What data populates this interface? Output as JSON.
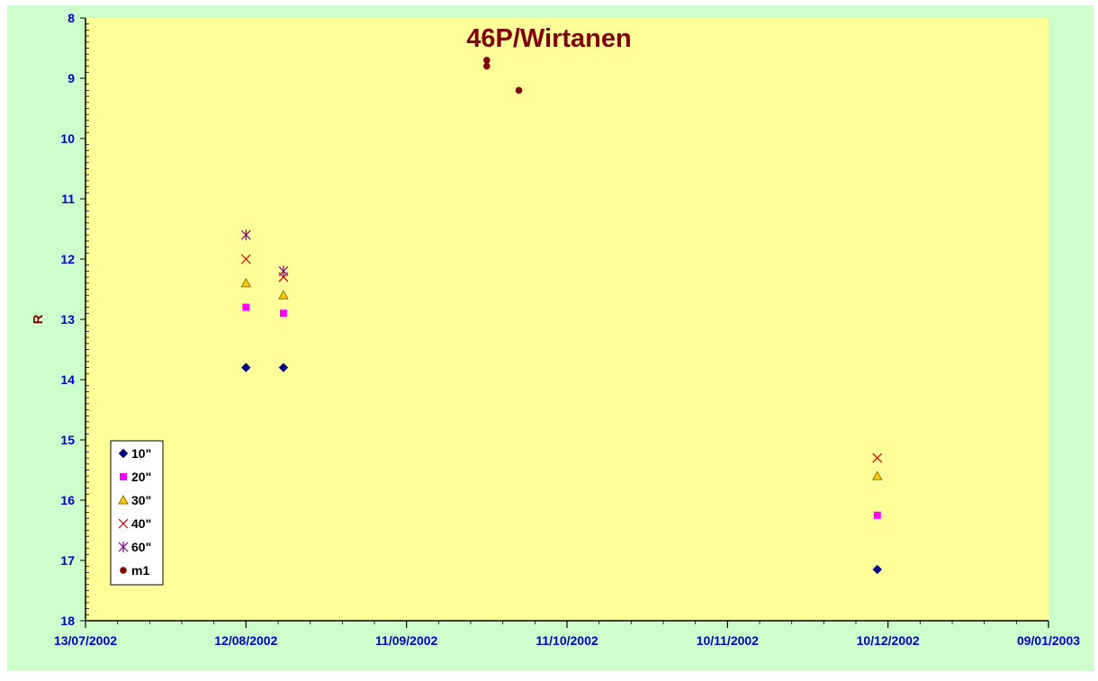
{
  "colors": {
    "chart_area": "#ccffcc",
    "plot_area": "#ffff99",
    "title": "#800000",
    "axis_text": "#0000cc",
    "ylabel": "#800000"
  },
  "chart_data": {
    "type": "scatter",
    "title": "46P/Wirtanen",
    "xlabel": "",
    "ylabel": "R",
    "x_axis": {
      "type": "date",
      "min": "2002-07-13",
      "max": "2003-01-09",
      "tick_labels": [
        "13/07/2002",
        "12/08/2002",
        "11/09/2002",
        "11/10/2002",
        "10/11/2002",
        "10/12/2002",
        "09/01/2003"
      ]
    },
    "y_axis": {
      "reversed": true,
      "ylim": [
        8,
        18
      ],
      "ticks": [
        8,
        9,
        10,
        11,
        12,
        13,
        14,
        15,
        16,
        17,
        18
      ]
    },
    "grid": false,
    "legend": {
      "position": "bottom-left"
    },
    "series": [
      {
        "name": "10\"",
        "marker": "diamond",
        "color": "#000080",
        "points": [
          {
            "x": "2002-08-12",
            "y": 13.8
          },
          {
            "x": "2002-08-19",
            "y": 13.8
          },
          {
            "x": "2002-12-08",
            "y": 17.15
          }
        ]
      },
      {
        "name": "20\"",
        "marker": "square",
        "color": "#ff00ff",
        "points": [
          {
            "x": "2002-08-12",
            "y": 12.8
          },
          {
            "x": "2002-08-19",
            "y": 12.9
          },
          {
            "x": "2002-12-08",
            "y": 16.25
          }
        ]
      },
      {
        "name": "30\"",
        "marker": "triangle",
        "color": "#ffcc00",
        "points": [
          {
            "x": "2002-08-12",
            "y": 12.4
          },
          {
            "x": "2002-08-19",
            "y": 12.6
          },
          {
            "x": "2002-12-08",
            "y": 15.6
          }
        ]
      },
      {
        "name": "40\"",
        "marker": "x",
        "color": "#cc0000",
        "points": [
          {
            "x": "2002-08-12",
            "y": 12.0
          },
          {
            "x": "2002-08-19",
            "y": 12.3
          },
          {
            "x": "2002-12-08",
            "y": 15.3
          }
        ]
      },
      {
        "name": "60\"",
        "marker": "star",
        "color": "#800080",
        "points": [
          {
            "x": "2002-08-12",
            "y": 11.6
          },
          {
            "x": "2002-08-19",
            "y": 12.2
          }
        ]
      },
      {
        "name": "m1",
        "marker": "circle",
        "color": "#800000",
        "points": [
          {
            "x": "2002-09-26",
            "y": 8.7
          },
          {
            "x": "2002-09-26",
            "y": 8.8
          },
          {
            "x": "2002-10-02",
            "y": 9.2
          }
        ]
      }
    ]
  }
}
